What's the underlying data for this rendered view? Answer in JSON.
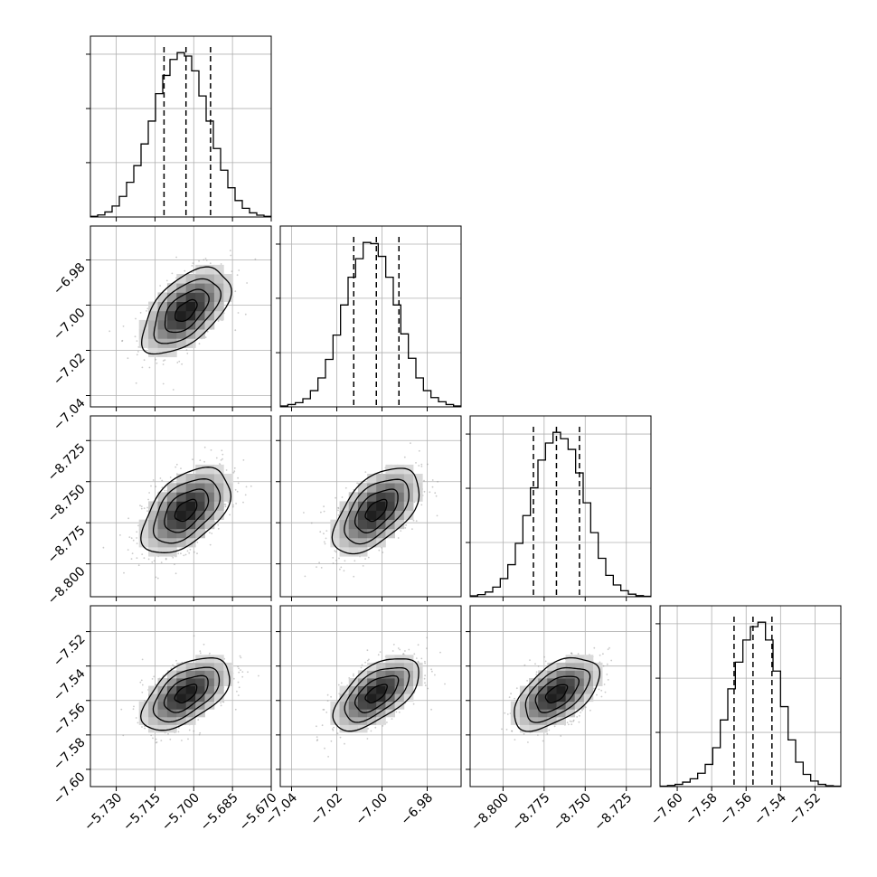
{
  "figure": {
    "type": "corner_plot"
  },
  "chart_data": {
    "type": "corner",
    "parameters": [
      {
        "index": 0,
        "xlim": [
          -5.74,
          -5.67
        ],
        "xticks": [
          -5.73,
          -5.715,
          -5.7,
          -5.685,
          -5.67
        ],
        "xtick_labels": [
          "−5.730",
          "−5.715",
          "−5.700",
          "−5.685",
          "−5.670"
        ],
        "mean": -5.703,
        "sd": 0.0085,
        "quantiles": [
          -5.7115,
          -5.703,
          -5.6935
        ]
      },
      {
        "index": 1,
        "xlim": [
          -7.045,
          -6.965
        ],
        "xticks": [
          -7.04,
          -7.02,
          -7.0,
          -6.98
        ],
        "xtick_labels": [
          "−7.04",
          "−7.02",
          "−7.00",
          "−6.98"
        ],
        "ytick_labels": [
          "−6.98",
          "−7.00",
          "−7.02",
          "−7.04"
        ],
        "mean": -7.0025,
        "sd": 0.0095,
        "quantiles": [
          -7.0125,
          -7.0025,
          -6.9925
        ]
      },
      {
        "index": 2,
        "xlim": [
          -8.82,
          -8.71
        ],
        "xticks": [
          -8.8,
          -8.775,
          -8.75,
          -8.725
        ],
        "xtick_labels": [
          "−8.800",
          "−8.775",
          "−8.750",
          "−8.725"
        ],
        "ytick_labels": [
          "−8.725",
          "−8.750",
          "−8.775",
          "−8.800"
        ],
        "mean": -8.7675,
        "sd": 0.013,
        "quantiles": [
          -8.7815,
          -8.7675,
          -8.7535
        ]
      },
      {
        "index": 3,
        "xlim": [
          -7.61,
          -7.505
        ],
        "xticks": [
          -7.6,
          -7.58,
          -7.56,
          -7.54,
          -7.52
        ],
        "xtick_labels": [
          "−7.60",
          "−7.58",
          "−7.56",
          "−7.54",
          "−7.52"
        ],
        "ytick_labels": [
          "−7.52",
          "−7.54",
          "−7.56",
          "−7.58",
          "−7.60"
        ],
        "mean": -7.556,
        "sd": 0.0105,
        "quantiles": [
          -7.567,
          -7.556,
          -7.545
        ]
      }
    ],
    "histograms": [
      {
        "param": 0,
        "xlim": [
          -5.74,
          -5.67
        ],
        "counts": [
          3,
          9,
          22,
          48,
          90,
          152,
          225,
          320,
          420,
          540,
          620,
          690,
          720,
          705,
          640,
          530,
          420,
          300,
          205,
          128,
          72,
          38,
          18,
          8,
          3
        ]
      },
      {
        "param": 1,
        "xlim": [
          -7.045,
          -6.965
        ],
        "counts": [
          4,
          10,
          18,
          35,
          70,
          125,
          205,
          310,
          440,
          560,
          640,
          710,
          705,
          650,
          560,
          440,
          315,
          210,
          125,
          70,
          40,
          22,
          10,
          4
        ]
      },
      {
        "param": 2,
        "xlim": [
          -8.82,
          -8.71
        ],
        "counts": [
          4,
          10,
          22,
          45,
          85,
          150,
          250,
          380,
          510,
          640,
          720,
          770,
          740,
          690,
          580,
          440,
          300,
          180,
          100,
          55,
          28,
          12,
          5,
          2
        ]
      },
      {
        "param": 3,
        "xlim": [
          -7.61,
          -7.505
        ],
        "counts": [
          2,
          5,
          10,
          20,
          35,
          60,
          100,
          175,
          300,
          440,
          560,
          660,
          720,
          740,
          660,
          520,
          360,
          210,
          110,
          55,
          25,
          10,
          4,
          2
        ]
      }
    ],
    "correlations": [
      {
        "x": 0,
        "y": 1,
        "rho": 0.55
      },
      {
        "x": 0,
        "y": 2,
        "rho": 0.5
      },
      {
        "x": 1,
        "y": 2,
        "rho": 0.55
      },
      {
        "x": 0,
        "y": 3,
        "rho": 0.55
      },
      {
        "x": 1,
        "y": 3,
        "rho": 0.6
      },
      {
        "x": 2,
        "y": 3,
        "rho": 0.55
      }
    ],
    "contour_levels_sigma": [
      0.5,
      1.0,
      1.5,
      2.0
    ],
    "grid": true,
    "title": "",
    "xlabel": "",
    "ylabel": ""
  }
}
